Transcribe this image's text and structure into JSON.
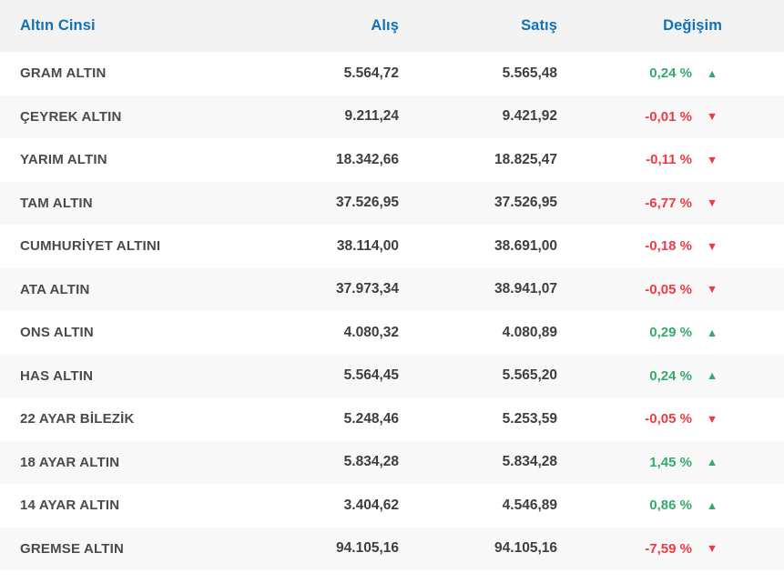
{
  "table": {
    "columns": {
      "gold_type": "Altın Cinsi",
      "buy": "Alış",
      "sell": "Satış",
      "change": "Değişim"
    },
    "rows": [
      {
        "name": "GRAM ALTIN",
        "buy": "5.564,72",
        "sell": "5.565,48",
        "change": "0,24 %",
        "direction": "up"
      },
      {
        "name": "ÇEYREK ALTIN",
        "buy": "9.211,24",
        "sell": "9.421,92",
        "change": "-0,01 %",
        "direction": "down"
      },
      {
        "name": "YARIM ALTIN",
        "buy": "18.342,66",
        "sell": "18.825,47",
        "change": "-0,11 %",
        "direction": "down"
      },
      {
        "name": "TAM ALTIN",
        "buy": "37.526,95",
        "sell": "37.526,95",
        "change": "-6,77 %",
        "direction": "down"
      },
      {
        "name": "CUMHURİYET ALTINI",
        "buy": "38.114,00",
        "sell": "38.691,00",
        "change": "-0,18 %",
        "direction": "down"
      },
      {
        "name": "ATA ALTIN",
        "buy": "37.973,34",
        "sell": "38.941,07",
        "change": "-0,05 %",
        "direction": "down"
      },
      {
        "name": "ONS ALTIN",
        "buy": "4.080,32",
        "sell": "4.080,89",
        "change": "0,29 %",
        "direction": "up"
      },
      {
        "name": "HAS ALTIN",
        "buy": "5.564,45",
        "sell": "5.565,20",
        "change": "0,24 %",
        "direction": "up"
      },
      {
        "name": "22 AYAR BİLEZİK",
        "buy": "5.248,46",
        "sell": "5.253,59",
        "change": "-0,05 %",
        "direction": "down"
      },
      {
        "name": "18 AYAR ALTIN",
        "buy": "5.834,28",
        "sell": "5.834,28",
        "change": "1,45 %",
        "direction": "up"
      },
      {
        "name": "14 AYAR ALTIN",
        "buy": "3.404,62",
        "sell": "4.546,89",
        "change": "0,86 %",
        "direction": "up"
      },
      {
        "name": "GREMSE ALTIN",
        "buy": "94.105,16",
        "sell": "94.105,16",
        "change": "-7,59 %",
        "direction": "down"
      }
    ]
  },
  "icons": {
    "up": "▲",
    "down": "▼"
  },
  "colors": {
    "header_blue": "#1173b7",
    "up_green": "#36a96e",
    "down_red": "#ef3a44",
    "header_bg": "#f3f3f4",
    "stripe_bg": "#f8f8f9"
  }
}
